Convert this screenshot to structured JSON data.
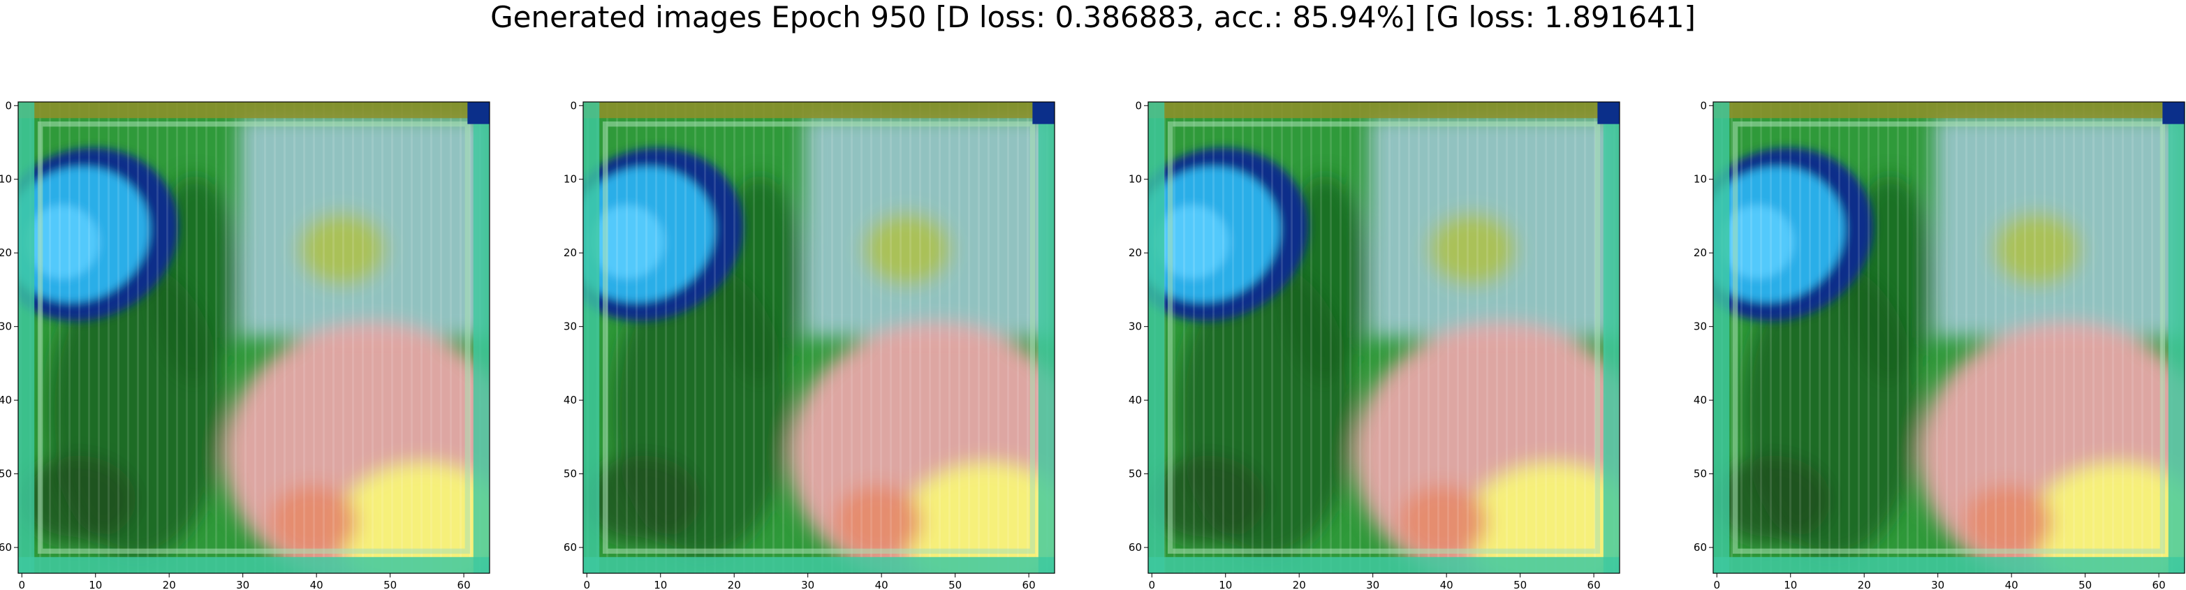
{
  "title": "Generated images Epoch 950 [D loss: 0.386883, acc.: 85.94%] [G loss: 1.891641]",
  "chart_data": [
    {
      "type": "image",
      "title": "",
      "xlim": [
        0,
        63
      ],
      "ylim": [
        63,
        0
      ],
      "xticks": [
        "0",
        "10",
        "20",
        "30",
        "40",
        "50",
        "60"
      ],
      "yticks": [
        "0",
        "10",
        "20",
        "30",
        "40",
        "50",
        "60"
      ]
    },
    {
      "type": "image",
      "title": "",
      "xlim": [
        0,
        63
      ],
      "ylim": [
        63,
        0
      ],
      "xticks": [
        "0",
        "10",
        "20",
        "30",
        "40",
        "50",
        "60"
      ],
      "yticks": [
        "0",
        "10",
        "20",
        "30",
        "40",
        "50",
        "60"
      ]
    },
    {
      "type": "image",
      "title": "",
      "xlim": [
        0,
        63
      ],
      "ylim": [
        63,
        0
      ],
      "xticks": [
        "0",
        "10",
        "20",
        "30",
        "40",
        "50",
        "60"
      ],
      "yticks": [
        "0",
        "10",
        "20",
        "30",
        "40",
        "50",
        "60"
      ]
    },
    {
      "type": "image",
      "title": "",
      "xlim": [
        0,
        63
      ],
      "ylim": [
        63,
        0
      ],
      "xticks": [
        "0",
        "10",
        "20",
        "30",
        "40",
        "50",
        "60"
      ],
      "yticks": [
        "0",
        "10",
        "20",
        "30",
        "40",
        "50",
        "60"
      ]
    }
  ],
  "colors": {
    "frame": "#000000",
    "base_green": "#2f9a3a",
    "dark_green": "#15601f",
    "teal_border": "#3fc9a0",
    "blue_eye": "#2aaee8",
    "dark_blue": "#0b2f8a",
    "light_blue": "#9cc6cf",
    "pink": "#e7a6a8",
    "yellow": "#f6f07a",
    "olive": "#8f8f2a"
  }
}
